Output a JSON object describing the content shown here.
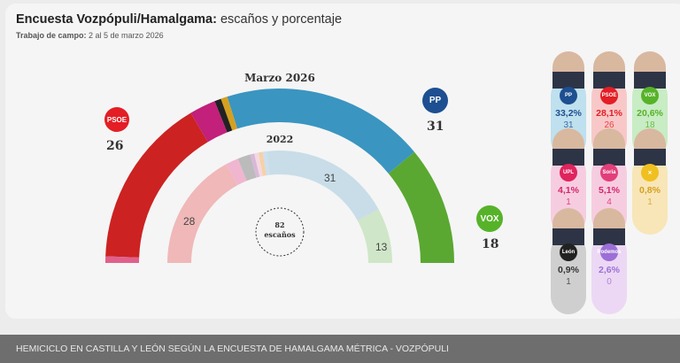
{
  "header": {
    "title_bold": "Encuesta Vozpópuli/Hamalgama:",
    "title_rest": " escaños y porcentaje",
    "subtitle_bold": "Trabajo de campo:",
    "subtitle_rest": " 2 al 5 de marzo 2026"
  },
  "chart_data": [
    {
      "type": "pie",
      "variant": "hemicycle",
      "title": "Marzo 2026",
      "total_label": "82",
      "total_unit": "escaños",
      "segments": [
        {
          "value": 1,
          "color": "#e0608c"
        },
        {
          "value": 26,
          "color": "#cc2222",
          "label": "PSOE"
        },
        {
          "value": 4,
          "color": "#c2207a"
        },
        {
          "value": 1,
          "color": "#222222"
        },
        {
          "value": 1,
          "color": "#d4a020"
        },
        {
          "value": 31,
          "color": "#3a95c0",
          "label": "PP"
        },
        {
          "value": 18,
          "color": "#5aa832",
          "label": "VOX"
        }
      ]
    },
    {
      "type": "pie",
      "variant": "hemicycle",
      "title": "2022",
      "segments": [
        {
          "value": 28,
          "color": "#f0b8b8"
        },
        {
          "value": 3,
          "color": "#f0b6d0"
        },
        {
          "value": 3,
          "color": "#bbbbbb"
        },
        {
          "value": 1,
          "color": "#d8b8d8"
        },
        {
          "value": 1,
          "color": "#f4d8e0"
        },
        {
          "value": 1,
          "color": "#f6d0a8"
        },
        {
          "value": 1,
          "color": "#cde0ec"
        },
        {
          "value": 31,
          "color": "#c8dde8"
        },
        {
          "value": 13,
          "color": "#cfe6c8"
        }
      ],
      "data_labels": {
        "psoe": "28",
        "pp": "31",
        "vox": "13"
      }
    }
  ],
  "parties": {
    "psoe": {
      "logo": "PSOE",
      "seats": "26",
      "color": "#e31e24"
    },
    "pp": {
      "logo": "PP",
      "seats": "31",
      "color": "#1d4f91"
    },
    "vox": {
      "logo": "VOX",
      "seats": "18",
      "color": "#56b329"
    }
  },
  "candidates": [
    {
      "pct": "33,2%",
      "seats": "31",
      "bg": "#bfe0ee",
      "color": "#1d4f91",
      "badge": "#1d4f91",
      "logo": "PP"
    },
    {
      "pct": "28,1%",
      "seats": "26",
      "bg": "#f8c8c8",
      "color": "#e31e24",
      "badge": "#e31e24",
      "logo": "PSOE"
    },
    {
      "pct": "20,6%",
      "seats": "18",
      "bg": "#c8ecc4",
      "color": "#56b329",
      "badge": "#56b329",
      "logo": "VOX"
    },
    {
      "pct": "4,1%",
      "seats": "1",
      "bg": "#f6cde0",
      "color": "#d6246e",
      "badge": "#e0245e",
      "logo": "UPL"
    },
    {
      "pct": "5,1%",
      "seats": "4",
      "bg": "#f6cde0",
      "color": "#d6246e",
      "badge": "#e23f7a",
      "logo": "Soria"
    },
    {
      "pct": "0,8%",
      "seats": "1",
      "bg": "#f8e6b8",
      "color": "#d4a020",
      "badge": "#f0c020",
      "logo": "✕"
    },
    {
      "pct": "0,9%",
      "seats": "1",
      "bg": "#cfcfcf",
      "color": "#333333",
      "badge": "#222222",
      "logo": "León"
    },
    {
      "pct": "2,6%",
      "seats": "0",
      "bg": "#ecd8f4",
      "color": "#9b6fd6",
      "badge": "#9b6fd6",
      "logo": "Podemos"
    }
  ],
  "footer": {
    "caption": "HEMICICLO EN CASTILLA Y LEÓN SEGÚN LA ENCUESTA DE HAMALGAMA MÉTRICA - VOZPÓPULI"
  }
}
